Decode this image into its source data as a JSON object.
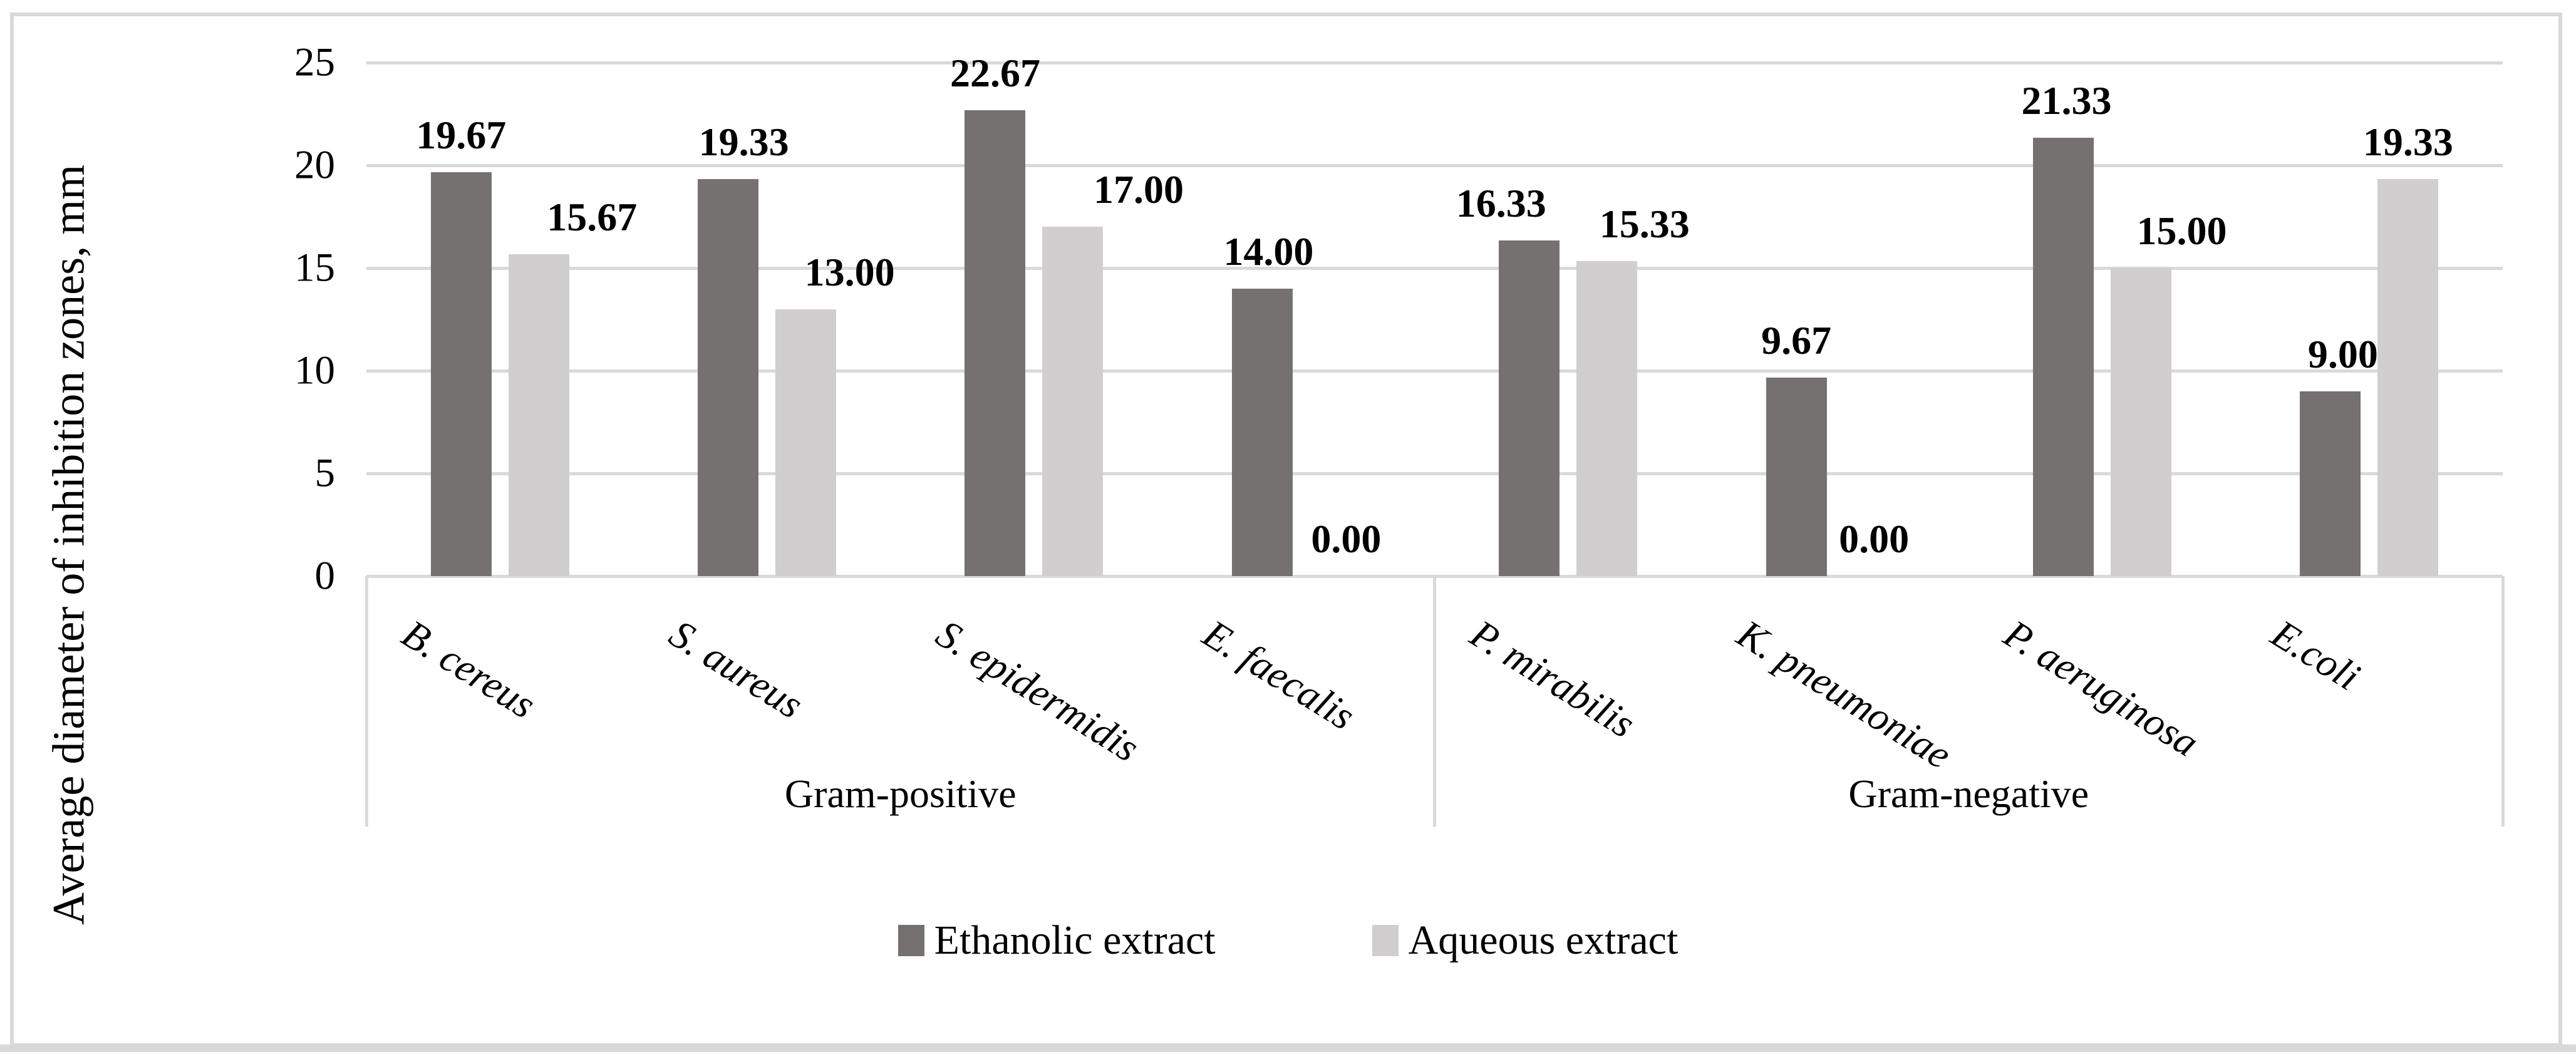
{
  "figure": {
    "background": "#ffffff",
    "border_color": "#d9d9d9"
  },
  "chart_data": {
    "type": "bar",
    "title": "",
    "xlabel": "",
    "ylabel": "Average diameter of inhibition zones, mm",
    "ylim": [
      0,
      25
    ],
    "ytick_interval": 5,
    "yticks": [
      "0",
      "5",
      "10",
      "15",
      "20",
      "25"
    ],
    "grid": true,
    "gridline_color": "#d9d9d9",
    "axis_color": "#d9d9d9",
    "legend_position": "bottom",
    "groups": [
      {
        "label": "Gram-positive",
        "categories": [
          "B. cereus",
          "S. aureus",
          "S. epidermidis",
          "E. faecalis"
        ]
      },
      {
        "label": "Gram-negative",
        "categories": [
          "P. mirabilis",
          "K. pneumoniae",
          "P. aeruginosa",
          "E.coli"
        ]
      }
    ],
    "categories": [
      "B. cereus",
      "S. aureus",
      "S. epidermidis",
      "E. faecalis",
      "P. mirabilis",
      "K. pneumoniae",
      "P. aeruginosa",
      "E.coli"
    ],
    "series": [
      {
        "name": "Ethanolic extract",
        "color": "#757171",
        "values": [
          19.67,
          19.33,
          22.67,
          14.0,
          16.33,
          9.67,
          21.33,
          9.0
        ],
        "labels": [
          "19.67",
          "19.33",
          "22.67",
          "14.00",
          "16.33",
          "9.67",
          "21.33",
          "9.00"
        ]
      },
      {
        "name": "Aqueous extract",
        "color": "#d0cece",
        "values": [
          15.67,
          13.0,
          17.0,
          0.0,
          15.33,
          0.0,
          15.0,
          19.33
        ],
        "labels": [
          "15.67",
          "13.00",
          "17.00",
          "0.00",
          "15.33",
          "0.00",
          "15.00",
          "19.33"
        ]
      }
    ]
  }
}
